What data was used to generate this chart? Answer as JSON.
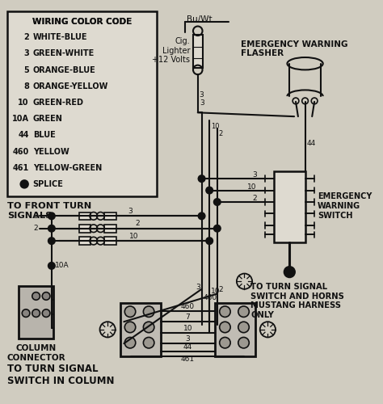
{
  "bg_color": "#d0ccc0",
  "line_color": "#111111",
  "box_bg": "#dedad0",
  "color_code_entries": [
    [
      "2",
      "WHITE-BLUE"
    ],
    [
      "3",
      "GREEN-WHITE"
    ],
    [
      "5",
      "ORANGE-BLUE"
    ],
    [
      "8",
      "ORANGE-YELLOW"
    ],
    [
      "10",
      "GREEN-RED"
    ],
    [
      "10A",
      "GREEN"
    ],
    [
      "44",
      "BLUE"
    ],
    [
      "460",
      "YELLOW"
    ],
    [
      "461",
      "YELLOW-GREEN"
    ],
    [
      "SPLICE",
      "SPLICE"
    ]
  ],
  "labels": {
    "bu_wt": "Bu/Wt",
    "cig_title": "Cig.\nLighter\n+12 Volts",
    "flasher_title": "EMERGENCY WARNING\nFLASHER",
    "ew_switch": "EMERGENCY\nWARNING\nSWITCH",
    "front_signals": "TO FRONT TURN\nSIGNALS",
    "col_connector": "COLUMN\nCONNECTOR",
    "turn_switch_col": "TO TURN SIGNAL\nSWITCH IN COLUMN",
    "mustang": "TO TURN SIGNAL\nSWITCH AND HORNS\nMUSTANG HARNESS\nONLY"
  },
  "wire_nums_center": [
    "460",
    "7",
    "10",
    "3",
    "44"
  ],
  "wire_nums_center_y_offsets": [
    10,
    24,
    38,
    52,
    62
  ],
  "bottom_wire_label": "461"
}
